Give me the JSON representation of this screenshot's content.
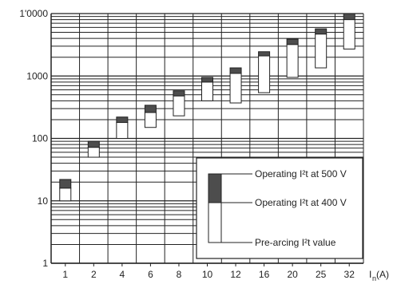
{
  "chart_data": {
    "type": "bar",
    "chart_style": "floating range bars on logarithmic y-axis",
    "y_scale": "log",
    "ylim": [
      1,
      10000
    ],
    "y_tick_values": [
      1,
      10,
      100,
      1000,
      10000
    ],
    "y_tick_labels": [
      "1",
      "10",
      "100",
      "1000",
      "1'0000"
    ],
    "grid": "horizontal log minor gridlines and vertical gridlines between categories",
    "x_axis_label": "I",
    "x_axis_label_sub": "n",
    "x_axis_label_unit": " (A)",
    "categories": [
      "1",
      "2",
      "4",
      "6",
      "8",
      "10",
      "12",
      "16",
      "20",
      "25",
      "32"
    ],
    "series": [
      {
        "name": "Pre-arcing I²t value",
        "color": "#ffffff",
        "ranges": [
          [
            10,
            16
          ],
          [
            50,
            72
          ],
          [
            100,
            180
          ],
          [
            150,
            260
          ],
          [
            230,
            480
          ],
          [
            400,
            800
          ],
          [
            370,
            1100
          ],
          [
            540,
            2100
          ],
          [
            950,
            3200
          ],
          [
            1350,
            4700
          ],
          [
            2700,
            8000
          ]
        ]
      },
      {
        "name": "Operating I²t at 400 V",
        "color": "#ffffff",
        "values": [
          16,
          72,
          180,
          260,
          480,
          800,
          1100,
          2100,
          3200,
          4700,
          8000
        ]
      },
      {
        "name": "Operating I²t at 500 V",
        "color": "#4d4d4d",
        "values": [
          22,
          90,
          220,
          340,
          580,
          950,
          1350,
          2450,
          3900,
          5700,
          10000
        ]
      }
    ],
    "legend": {
      "position": "bottom-right",
      "entries": [
        "Operating I²t at 500 V",
        "Operating I²t at 400 V",
        "Pre-arcing I²t value"
      ]
    }
  }
}
